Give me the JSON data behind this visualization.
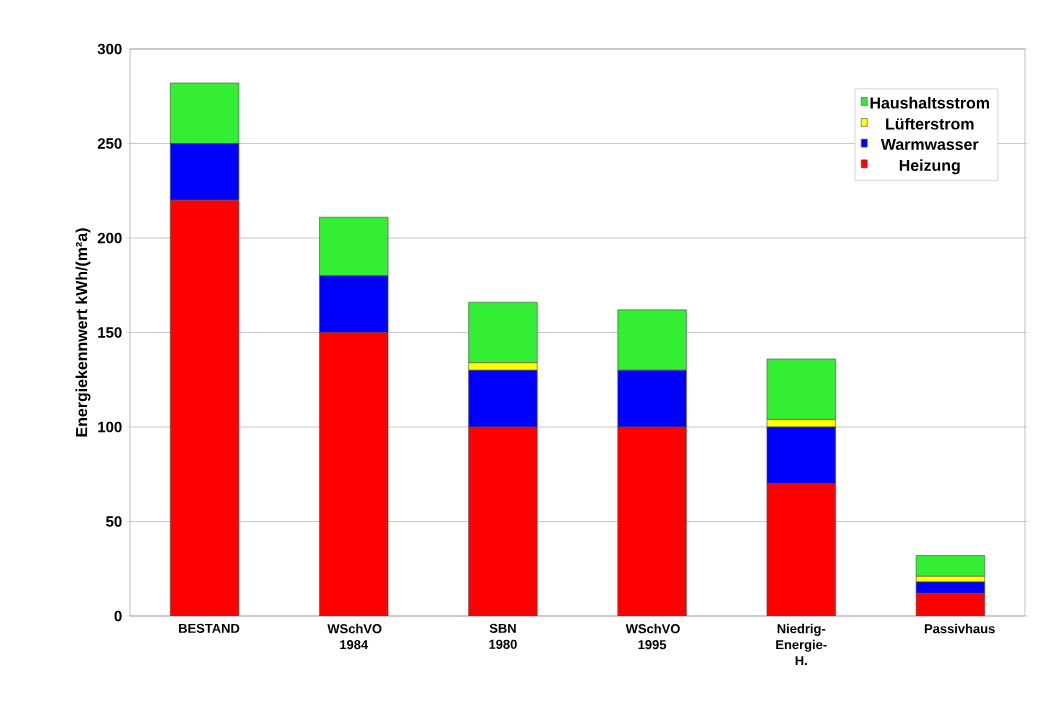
{
  "chart_data": {
    "type": "bar",
    "stacked": true,
    "ylabel": "Energiekennwert kWh/(m²a)",
    "categories": [
      "BESTAND",
      "WSchVO 1984",
      "SBN 1980",
      "WSchVO 1995",
      "Niedrig-Energie-H.",
      "Passivhaus"
    ],
    "series": [
      {
        "name": "Heizung",
        "color": "#ff0000",
        "values": [
          220,
          150,
          100,
          100,
          70,
          12
        ]
      },
      {
        "name": "Warmwasser",
        "color": "#0000ff",
        "values": [
          30,
          30,
          30,
          30,
          30,
          6
        ]
      },
      {
        "name": "Lüfterstrom",
        "color": "#ffff00",
        "values": [
          0,
          0,
          4,
          0,
          4,
          3
        ]
      },
      {
        "name": "Haushaltsstrom",
        "color": "#33ee33",
        "values": [
          32,
          31,
          32,
          32,
          32,
          11
        ]
      }
    ],
    "ylim": [
      0,
      300
    ],
    "yticks": [
      0,
      50,
      100,
      150,
      200,
      250,
      300
    ],
    "grid": "y",
    "legend": "top right"
  }
}
